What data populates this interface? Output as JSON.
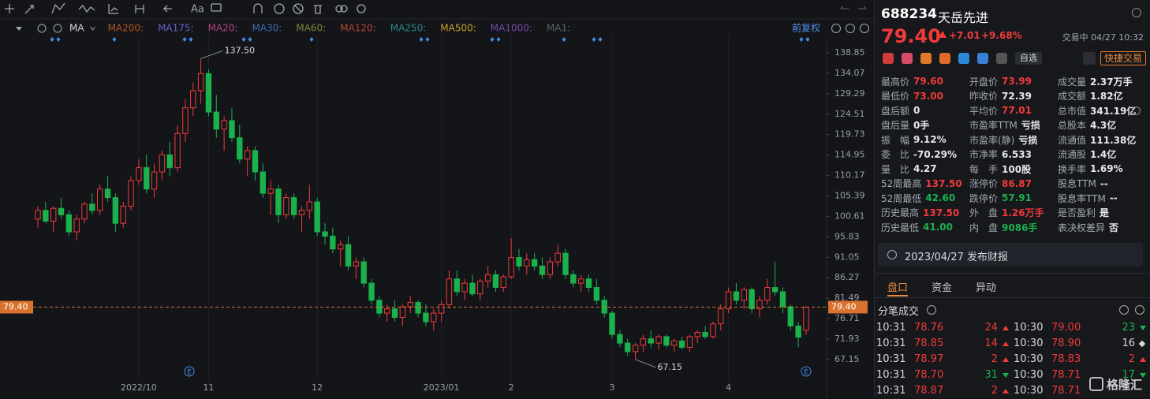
{
  "chart_data": {
    "type": "candlestick",
    "categories": [
      null,
      null,
      null,
      null,
      null,
      null,
      null,
      null,
      null,
      null,
      null,
      null,
      null,
      "2022/10",
      null,
      null,
      null,
      null,
      null,
      null,
      null,
      null,
      "11",
      null,
      null,
      null,
      null,
      null,
      null,
      null,
      null,
      null,
      null,
      null,
      null,
      null,
      "12",
      null,
      null,
      null,
      null,
      null,
      null,
      null,
      null,
      null,
      null,
      null,
      null,
      null,
      null,
      null,
      "2023/01",
      null,
      null,
      null,
      null,
      null,
      null,
      null,
      null,
      "2",
      null,
      null,
      null,
      null,
      null,
      null,
      null,
      null,
      null,
      null,
      null,
      null,
      "3",
      null,
      null,
      null,
      null,
      null,
      null,
      null,
      null,
      null,
      null,
      null,
      null,
      null,
      null,
      "4",
      null,
      null,
      null,
      null,
      null,
      null,
      null,
      null,
      null,
      null
    ],
    "open": [
      100,
      102,
      99.5,
      102.5,
      101,
      97,
      100,
      103.5,
      102,
      107,
      105,
      99,
      103,
      109,
      112,
      107,
      111,
      115,
      112,
      120,
      126,
      130,
      134,
      125,
      121,
      123,
      119,
      114,
      116,
      111,
      106,
      107,
      101,
      105,
      101,
      102,
      104,
      97,
      96,
      93,
      94,
      89,
      90,
      85,
      81,
      78,
      79,
      77,
      79.5,
      80.5,
      78,
      76,
      78,
      80,
      86,
      83,
      85,
      82.5,
      85.5,
      87,
      84,
      86.5,
      91,
      89,
      90.5,
      89,
      87,
      90,
      92,
      87,
      85,
      86,
      84,
      81,
      78,
      73,
      71,
      69,
      70.5,
      72,
      71,
      72.5,
      70.5,
      71.5,
      70,
      72.5,
      73.5,
      72.5,
      75.5,
      79,
      83,
      81,
      83.5,
      79,
      81,
      84,
      83,
      79.5,
      75,
      73.99
    ],
    "high": [
      103,
      104,
      103,
      105,
      102,
      101,
      104,
      106,
      108,
      110,
      106,
      104,
      110,
      114,
      115,
      113,
      116,
      118,
      122,
      128,
      132,
      137.5,
      135,
      129,
      124,
      126,
      122,
      117,
      117,
      113,
      109,
      108,
      106,
      106,
      103,
      108,
      105,
      99,
      98,
      95,
      96,
      91,
      91,
      86,
      82,
      80,
      81,
      80,
      82,
      81,
      80,
      79,
      81,
      88,
      88,
      86,
      87,
      86,
      89,
      88,
      87,
      95.5,
      93,
      92,
      92,
      91,
      91,
      94,
      93,
      88,
      87,
      87,
      86,
      82,
      78.5,
      74,
      72,
      71,
      73,
      74,
      73,
      73,
      72,
      72.5,
      73,
      74,
      75,
      76,
      80,
      84,
      85,
      84,
      84,
      82,
      86,
      90,
      84,
      80,
      76,
      79.6
    ],
    "low": [
      98,
      99,
      97,
      100,
      96,
      95,
      99,
      101,
      101,
      104,
      97,
      98,
      102,
      108,
      106,
      105,
      109,
      110,
      111,
      118,
      124,
      127,
      124,
      119,
      116,
      118,
      113,
      110,
      109,
      105,
      101,
      99,
      100,
      100,
      97,
      100,
      96,
      94,
      92,
      89,
      88,
      86,
      84,
      80,
      77,
      76,
      76,
      75,
      78,
      77,
      75,
      74,
      76,
      79,
      82,
      81,
      82,
      81,
      84,
      83,
      83,
      86,
      88,
      87,
      88,
      86,
      86,
      89,
      86,
      84,
      83,
      83,
      80,
      77,
      72,
      70,
      68,
      67.15,
      69,
      70,
      69.5,
      70,
      69,
      69.5,
      69,
      71,
      72,
      72,
      74,
      78,
      80,
      79,
      78,
      77,
      80,
      82,
      78,
      74,
      70,
      73.0
    ],
    "close": [
      102,
      99.5,
      102.5,
      101,
      97,
      100,
      103.5,
      102,
      107,
      105,
      99,
      103,
      109,
      112,
      107,
      111,
      115,
      112,
      120,
      126,
      130,
      134,
      125,
      121,
      123,
      119,
      114,
      116,
      111,
      106,
      107,
      101,
      105,
      101,
      102,
      104,
      97,
      96,
      93,
      94,
      89,
      90,
      85,
      81,
      78,
      79,
      77,
      79.5,
      80.5,
      78,
      76,
      78,
      80,
      86,
      83,
      85,
      82.5,
      85.5,
      87,
      84,
      86.5,
      91,
      89,
      90.5,
      89,
      87,
      90,
      92,
      87,
      85,
      86,
      84,
      81,
      78,
      73,
      71,
      69,
      70.5,
      72,
      71,
      72.5,
      70.5,
      71.5,
      70,
      72.5,
      73.5,
      72.5,
      75.5,
      79,
      83,
      81,
      83.5,
      79,
      81,
      84,
      83,
      79.5,
      75,
      72.39,
      79.4
    ],
    "up_color": "#f23a3a",
    "down_color": "#1bb14c",
    "ylim": [
      62.35,
      142.9
    ],
    "yticks": [
      138.85,
      134.07,
      129.29,
      124.51,
      119.73,
      114.95,
      110.17,
      105.39,
      100.61,
      95.83,
      91.05,
      86.27,
      81.49,
      76.71,
      71.93,
      67.15
    ],
    "grid": true,
    "indicator_label": "MA",
    "indicators": [
      {
        "name": "MA200:",
        "color": "#b3561f"
      },
      {
        "name": "MA175:",
        "color": "#6c5fc7"
      },
      {
        "name": "MA20:",
        "color": "#b8447f"
      },
      {
        "name": "MA30:",
        "color": "#3d6fb0"
      },
      {
        "name": "MA60:",
        "color": "#7b8a3a"
      },
      {
        "name": "MA120:",
        "color": "#b8413a"
      },
      {
        "name": "MA250:",
        "color": "#2a8a83"
      },
      {
        "name": "MA500:",
        "color": "#c9a227"
      },
      {
        "name": "MA1000:",
        "color": "#7a48a8"
      },
      {
        "name": "MA1:",
        "color": "#5e6168"
      }
    ],
    "adjust": "前复权",
    "high_label": "137.50",
    "low_label": "67.15",
    "last_label": "79.40",
    "last_color": "#d9722c",
    "event_label": "E"
  },
  "toolbar": {
    "font_button": "Aa"
  },
  "quote": {
    "code": "688234",
    "name": "天岳先进",
    "price": "79.40",
    "change": "+7.01",
    "change_pct": "+9.68%",
    "status": "交易中 04/27 10:32",
    "favorite": "自选",
    "trade_button": "快捷交易",
    "color": "#f23a3a"
  },
  "stats": [
    [
      {
        "label": "最高价",
        "value": "79.60",
        "color": "#f23a3a"
      },
      {
        "label": "开盘价",
        "value": "73.99",
        "color": "#f23a3a"
      },
      {
        "label": "成交量",
        "value": "2.37万手"
      }
    ],
    [
      {
        "label": "最低价",
        "value": "73.00",
        "color": "#f23a3a"
      },
      {
        "label": "昨收价",
        "value": "72.39"
      },
      {
        "label": "成交额",
        "value": "1.82亿"
      }
    ],
    [
      {
        "label": "盘后额",
        "value": "0"
      },
      {
        "label": "平均价",
        "value": "77.01",
        "color": "#f23a3a"
      },
      {
        "label": "总市值",
        "value": "341.19亿"
      }
    ],
    [
      {
        "label": "盘后量",
        "value": "0手"
      },
      {
        "label": "市盈率TTM",
        "value": "亏损"
      },
      {
        "label": "总股本",
        "value": "4.3亿"
      }
    ],
    [
      {
        "label": "振　幅",
        "value": "9.12%"
      },
      {
        "label": "市盈率(静)",
        "value": "亏损"
      },
      {
        "label": "流通值",
        "value": "111.38亿"
      }
    ],
    [
      {
        "label": "委　比",
        "value": "-70.29%"
      },
      {
        "label": "市净率",
        "value": "6.533"
      },
      {
        "label": "流通股",
        "value": "1.4亿"
      }
    ],
    [
      {
        "label": "量　比",
        "value": "4.27"
      },
      {
        "label": "每　手",
        "value": "100股"
      },
      {
        "label": "换手率",
        "value": "1.69%"
      }
    ],
    [
      {
        "label": "52周最高",
        "value": "137.50",
        "color": "#f23a3a"
      },
      {
        "label": "涨停价",
        "value": "86.87",
        "color": "#f23a3a"
      },
      {
        "label": "股息TTM",
        "value": "--"
      }
    ],
    [
      {
        "label": "52周最低",
        "value": "42.60",
        "color": "#1bb14c"
      },
      {
        "label": "跌停价",
        "value": "57.91",
        "color": "#1bb14c"
      },
      {
        "label": "股息率TTM",
        "value": "--"
      }
    ],
    [
      {
        "label": "历史最高",
        "value": "137.50",
        "color": "#f23a3a"
      },
      {
        "label": "外　盘",
        "value": "1.26万手",
        "color": "#f23a3a"
      },
      {
        "label": "是否盈利",
        "value": "是"
      }
    ],
    [
      {
        "label": "历史最低",
        "value": "41.00",
        "color": "#1bb14c"
      },
      {
        "label": "内　盘",
        "value": "9086手",
        "color": "#1bb14c"
      },
      {
        "label": "表决权差异",
        "value": "否"
      }
    ]
  ],
  "notice": "2023/04/27 发布财报",
  "tabs": [
    "盘口",
    "资金",
    "异动"
  ],
  "ticks_title": "分笔成交",
  "trades": [
    [
      {
        "time": "10:31",
        "price": "78.76",
        "volume": "24",
        "side": "up"
      },
      {
        "time": "10:30",
        "price": "79.00",
        "volume": "23",
        "side": "down"
      }
    ],
    [
      {
        "time": "10:31",
        "price": "78.85",
        "volume": "14",
        "side": "up"
      },
      {
        "time": "10:30",
        "price": "78.90",
        "volume": "16",
        "side": "neutral"
      }
    ],
    [
      {
        "time": "10:31",
        "price": "78.97",
        "volume": "2",
        "side": "up"
      },
      {
        "time": "10:30",
        "price": "78.83",
        "volume": "2",
        "side": "up"
      }
    ],
    [
      {
        "time": "10:31",
        "price": "78.70",
        "volume": "31",
        "side": "down"
      },
      {
        "time": "10:30",
        "price": "78.71",
        "volume": "17",
        "side": "down"
      }
    ],
    [
      {
        "time": "10:31",
        "price": "78.87",
        "volume": "2",
        "side": "up"
      },
      {
        "time": "10:30",
        "price": "78.71"
      }
    ]
  ],
  "watermark": "格隆汇"
}
